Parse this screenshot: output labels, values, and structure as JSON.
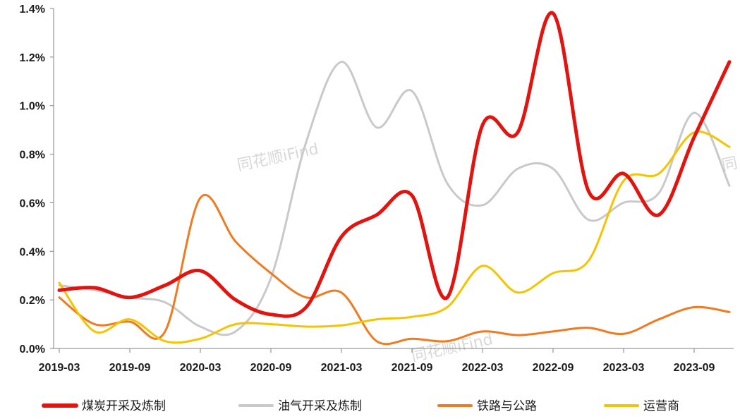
{
  "chart_data": {
    "type": "line",
    "title": "",
    "xlabel": "",
    "ylabel": "",
    "x_ticks": [
      "2019-03",
      "2019-09",
      "2020-03",
      "2020-09",
      "2021-03",
      "2021-09",
      "2022-03",
      "2022-09",
      "2023-03",
      "2023-09"
    ],
    "y_ticks": [
      "0.0%",
      "0.2%",
      "0.4%",
      "0.6%",
      "0.8%",
      "1.0%",
      "1.2%",
      "1.4%"
    ],
    "ylim": [
      0,
      1.4
    ],
    "y_unit": "%",
    "x_points": [
      "2019-03",
      "2019-06",
      "2019-09",
      "2019-12",
      "2020-03",
      "2020-06",
      "2020-09",
      "2020-12",
      "2021-03",
      "2021-06",
      "2021-09",
      "2021-12",
      "2022-03",
      "2022-06",
      "2022-09",
      "2022-12",
      "2023-03",
      "2023-06",
      "2023-09",
      "2023-12"
    ],
    "legend_position": "bottom",
    "grid": false,
    "series": [
      {
        "name": "煤炭开采及炼制",
        "color": "#e2140f",
        "width": 5,
        "values": [
          0.24,
          0.25,
          0.21,
          0.26,
          0.32,
          0.2,
          0.14,
          0.17,
          0.46,
          0.55,
          0.63,
          0.21,
          0.92,
          0.89,
          1.38,
          0.65,
          0.72,
          0.55,
          0.87,
          1.18
        ]
      },
      {
        "name": "油气开采及炼制",
        "color": "#c9c9c9",
        "width": 3,
        "values": [
          0.26,
          0.24,
          0.21,
          0.19,
          0.09,
          0.07,
          0.29,
          0.85,
          1.18,
          0.91,
          1.06,
          0.68,
          0.59,
          0.74,
          0.74,
          0.53,
          0.6,
          0.64,
          0.97,
          0.67
        ]
      },
      {
        "name": "铁路与公路",
        "color": "#f07a1f",
        "width": 3,
        "values": [
          0.21,
          0.1,
          0.11,
          0.07,
          0.62,
          0.44,
          0.31,
          0.21,
          0.23,
          0.03,
          0.04,
          0.03,
          0.07,
          0.055,
          0.07,
          0.085,
          0.06,
          0.12,
          0.17,
          0.15
        ]
      },
      {
        "name": "运营商",
        "color": "#f5c400",
        "width": 3,
        "values": [
          0.27,
          0.07,
          0.12,
          0.03,
          0.04,
          0.1,
          0.1,
          0.09,
          0.095,
          0.12,
          0.13,
          0.17,
          0.34,
          0.23,
          0.31,
          0.36,
          0.69,
          0.72,
          0.89,
          0.83
        ]
      }
    ]
  },
  "watermark": {
    "text": "同花顺iFind",
    "partial_text": "同"
  }
}
